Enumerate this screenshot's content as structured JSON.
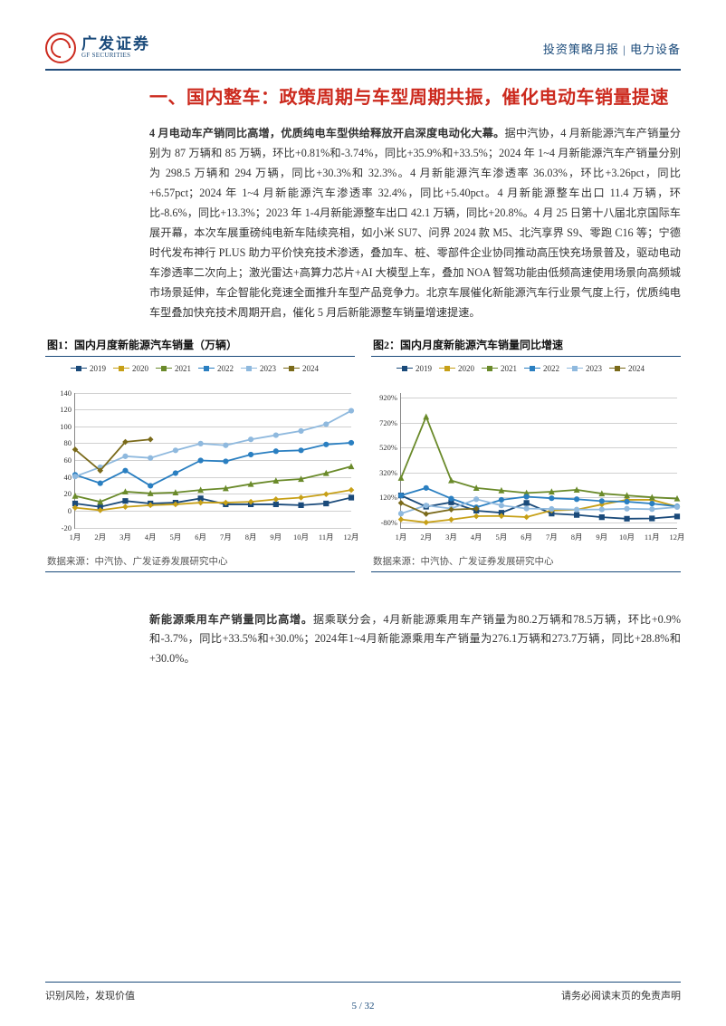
{
  "header": {
    "logo_cn": "广发证券",
    "logo_en": "GF SECURITIES",
    "right": "投资策略月报 | 电力设备"
  },
  "section_title": "一、国内整车：政策周期与车型周期共振，催化电动车销量提速",
  "para1_bold": "4 月电动车产销同比高增，优质纯电车型供给释放开启深度电动化大幕。",
  "para1_body": "据中汽协，4 月新能源汽车产销量分别为 87 万辆和 85 万辆，环比+0.81%和-3.74%，同比+35.9%和+33.5%；2024 年 1~4 月新能源汽车产销量分别为 298.5 万辆和 294 万辆，同比+30.3%和 32.3%。4 月新能源汽车渗透率 36.03%，环比+3.26pct，同比+6.57pct；2024 年 1~4 月新能源汽车渗透率 32.4%，同比+5.40pct。4 月新能源整车出口 11.4 万辆，环比-8.6%，同比+13.3%；2023 年 1-4月新能源整车出口 42.1 万辆，同比+20.8%。4 月 25 日第十八届北京国际车展开幕，本次车展重磅纯电新车陆续亮相，如小米 SU7、问界 2024 款 M5、北汽享界 S9、零跑 C16 等；宁德时代发布神行 PLUS 助力平价快充技术渗透，叠加车、桩、零部件企业协同推动高压快充场景普及，驱动电动车渗透率二次向上；激光雷达+高算力芯片+AI 大模型上车，叠加 NOA 智驾功能由低频高速使用场景向高频城市场景延伸，车企智能化竞速全面推升车型产品竞争力。北京车展催化新能源汽车行业景气度上行，优质纯电车型叠加快充技术周期开启，催化 5 月后新能源整车销量增速提速。",
  "para2_bold": "新能源乘用车产销量同比高增。",
  "para2_body": "据乘联分会，4月新能源乘用车产销量为80.2万辆和78.5万辆，环比+0.9%和-3.7%，同比+33.5%和+30.0%；2024年1~4月新能源乘用车产销量为276.1万辆和273.7万辆，同比+28.8%和+30.0%。",
  "chart1": {
    "type": "line",
    "title": "图1：国内月度新能源汽车销量（万辆）",
    "source": "数据来源：中汽协、广发证券发展研究中心",
    "x_labels": [
      "1月",
      "2月",
      "3月",
      "4月",
      "5月",
      "6月",
      "7月",
      "8月",
      "9月",
      "10月",
      "11月",
      "12月"
    ],
    "ylim": [
      -20,
      140
    ],
    "yticks": [
      -20,
      0,
      20,
      40,
      60,
      80,
      100,
      120,
      140
    ],
    "grid_color": "#d0d0d0",
    "background_color": "#ffffff",
    "line_width": 1.8,
    "legend_years": [
      "2019",
      "2020",
      "2021",
      "2022",
      "2023",
      "2024"
    ],
    "series": {
      "2019": {
        "color": "#1a4a7a",
        "marker": "square",
        "values": [
          9,
          5,
          12,
          9,
          10,
          15,
          8,
          8,
          8,
          7,
          9,
          16
        ]
      },
      "2020": {
        "color": "#c7a017",
        "marker": "diamond",
        "values": [
          4,
          1,
          5,
          7,
          8,
          10,
          10,
          11,
          14,
          16,
          20,
          25
        ]
      },
      "2021": {
        "color": "#6a8a2a",
        "marker": "triangle",
        "values": [
          18,
          11,
          23,
          21,
          22,
          25,
          27,
          32,
          36,
          38,
          45,
          53
        ]
      },
      "2022": {
        "color": "#2a7fc1",
        "marker": "circle",
        "values": [
          43,
          33,
          48,
          30,
          45,
          60,
          59,
          67,
          71,
          72,
          79,
          81
        ]
      },
      "2023": {
        "color": "#8fb9de",
        "marker": "circle",
        "values": [
          41,
          52,
          65,
          63,
          72,
          80,
          78,
          85,
          90,
          95,
          103,
          119
        ]
      },
      "2024": {
        "color": "#7a6a1a",
        "marker": "diamond",
        "values": [
          73,
          48,
          82,
          85,
          null,
          null,
          null,
          null,
          null,
          null,
          null,
          null
        ]
      }
    }
  },
  "chart2": {
    "type": "line",
    "title": "图2：国内月度新能源汽车销量同比增速",
    "source": "数据来源：中汽协、广发证券发展研究中心",
    "x_labels": [
      "1月",
      "2月",
      "3月",
      "4月",
      "5月",
      "6月",
      "7月",
      "8月",
      "9月",
      "10月",
      "11月",
      "12月"
    ],
    "ylim": [
      -120,
      960
    ],
    "yticks": [
      -80,
      120,
      320,
      520,
      720,
      920
    ],
    "grid_color": "#d0d0d0",
    "background_color": "#ffffff",
    "line_width": 1.8,
    "legend_years": [
      "2019",
      "2020",
      "2021",
      "2022",
      "2023",
      "2024"
    ],
    "series": {
      "2019": {
        "color": "#1a4a7a",
        "marker": "square",
        "values": [
          140,
          50,
          85,
          18,
          2,
          80,
          -5,
          -16,
          -34,
          -46,
          -44,
          -28
        ]
      },
      "2020": {
        "color": "#c7a017",
        "marker": "diamond",
        "values": [
          -52,
          -76,
          -53,
          -26,
          -24,
          -33,
          20,
          26,
          68,
          105,
          105,
          50
        ]
      },
      "2021": {
        "color": "#6a8a2a",
        "marker": "triangle",
        "values": [
          280,
          770,
          260,
          200,
          180,
          160,
          170,
          185,
          155,
          140,
          125,
          115
        ]
      },
      "2022": {
        "color": "#2a7fc1",
        "marker": "circle",
        "values": [
          140,
          200,
          115,
          45,
          105,
          130,
          118,
          110,
          95,
          90,
          75,
          52
        ]
      },
      "2023": {
        "color": "#8fb9de",
        "marker": "circle",
        "values": [
          -5,
          60,
          35,
          110,
          60,
          35,
          32,
          27,
          28,
          34,
          30,
          47
        ]
      },
      "2024": {
        "color": "#7a6a1a",
        "marker": "diamond",
        "values": [
          80,
          -8,
          27,
          34,
          null,
          null,
          null,
          null,
          null,
          null,
          null,
          null
        ]
      }
    }
  },
  "footer": {
    "left": "识别风险，发现价值",
    "right": "请务必阅读末页的免责声明",
    "page": "5 / 32"
  }
}
